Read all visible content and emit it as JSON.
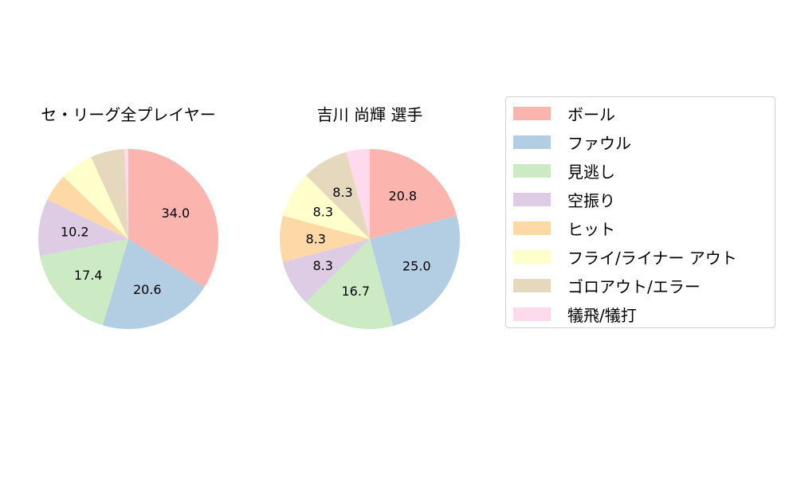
{
  "chart_data": [
    {
      "type": "pie",
      "title": "セ・リーグ全プレイヤー",
      "categories": [
        "ボール",
        "ファウル",
        "見逃し",
        "空振り",
        "ヒット",
        "フライ/ライナー アウト",
        "ゴロアウト/エラー",
        "犠飛/犠打"
      ],
      "values": [
        34.0,
        20.6,
        17.4,
        10.2,
        5.0,
        6.0,
        6.1,
        0.7
      ],
      "labels_shown": [
        "34.0",
        "20.6",
        "17.4",
        "10.2",
        "",
        "",
        "",
        ""
      ],
      "start_angle": 90,
      "direction": "clockwise"
    },
    {
      "type": "pie",
      "title": "吉川 尚輝  選手",
      "categories": [
        "ボール",
        "ファウル",
        "見逃し",
        "空振り",
        "ヒット",
        "フライ/ライナー アウト",
        "ゴロアウト/エラー",
        "犠飛/犠打"
      ],
      "values": [
        20.8,
        25.0,
        16.7,
        8.3,
        8.3,
        8.3,
        8.3,
        4.2
      ],
      "labels_shown": [
        "20.8",
        "25.0",
        "16.7",
        "8.3",
        "8.3",
        "8.3",
        "8.3",
        ""
      ],
      "start_angle": 90,
      "direction": "clockwise"
    }
  ],
  "legend": {
    "items": [
      {
        "label": "ボール",
        "color": "#fbb4ae"
      },
      {
        "label": "ファウル",
        "color": "#b3cde3"
      },
      {
        "label": "見逃し",
        "color": "#ccebc5"
      },
      {
        "label": "空振り",
        "color": "#decbe4"
      },
      {
        "label": "ヒット",
        "color": "#fed9a6"
      },
      {
        "label": "フライ/ライナー アウト",
        "color": "#ffffcc"
      },
      {
        "label": "ゴロアウト/エラー",
        "color": "#e5d8bd"
      },
      {
        "label": "犠飛/犠打",
        "color": "#fddaec"
      }
    ]
  }
}
